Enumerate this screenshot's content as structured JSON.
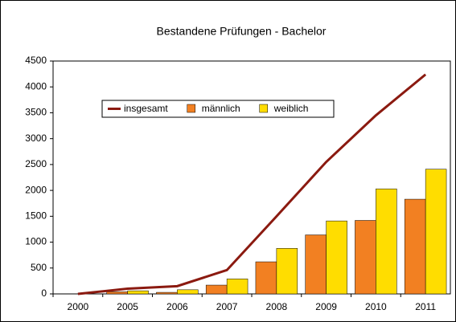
{
  "chart_data": {
    "type": "bar_line",
    "title": "Bestandene Prüfungen - Bachelor",
    "categories": [
      "2000",
      "2005",
      "2006",
      "2007",
      "2008",
      "2009",
      "2010",
      "2011"
    ],
    "series": [
      {
        "name": "insgesamt",
        "type": "line",
        "color": "#8b1a10",
        "values": [
          0,
          100,
          150,
          460,
          1500,
          2550,
          3450,
          4240
        ]
      },
      {
        "name": "männlich",
        "type": "bar",
        "color": "#f28022",
        "values": [
          0,
          40,
          30,
          170,
          620,
          1140,
          1420,
          1830
        ]
      },
      {
        "name": "weiblich",
        "type": "bar",
        "color": "#ffdd00",
        "values": [
          0,
          60,
          80,
          290,
          880,
          1410,
          2030,
          2410
        ]
      }
    ],
    "ylim": [
      0,
      4500
    ],
    "yticks": [
      0,
      500,
      1000,
      1500,
      2000,
      2500,
      3000,
      3500,
      4000,
      4500
    ],
    "grid": false
  }
}
